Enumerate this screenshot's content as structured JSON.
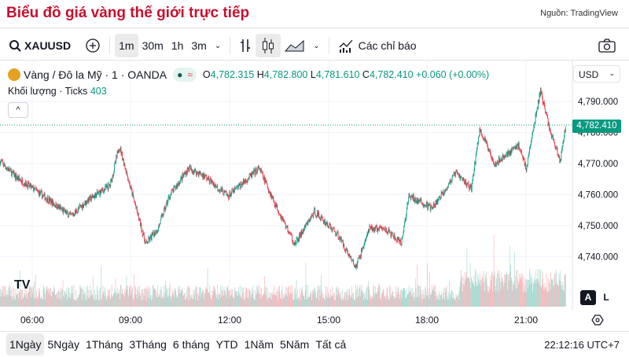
{
  "header": {
    "title": "Biểu đồ giá vàng thế giới trực tiếp",
    "source": "Nguồn: TradingView"
  },
  "toolbar": {
    "symbol": "XAUUSD",
    "intervals": [
      "1m",
      "30m",
      "1h",
      "3m"
    ],
    "active_interval": "1m",
    "indicators": "Các chỉ báo",
    "icons": [
      "search-icon",
      "plus-circle-icon",
      "chevron-down-icon",
      "bar-chart-icon",
      "candlestick-icon",
      "area-chart-icon",
      "chevron-down-icon",
      "indicators-icon",
      "camera-icon"
    ]
  },
  "legend": {
    "name": "Vàng / Đô la Mỹ · 1 · OANDA",
    "o_label": "O",
    "o": "4,782.315",
    "h_label": "H",
    "h": "4,782.800",
    "l_label": "L",
    "l": "4,781.610",
    "c_label": "C",
    "c": "4,782.410",
    "change": "+0.060 (+0.00%)",
    "volume_label": "Khối lượng · Ticks",
    "volume": "403",
    "collapse": "^"
  },
  "currency": "USD",
  "price_axis": {
    "ticks": [
      "4,790.000",
      "4,780.000",
      "4,770.000",
      "4,760.000",
      "4,750.000",
      "4,740.000"
    ],
    "last_price": "4,782.410"
  },
  "time_axis": {
    "ticks": [
      "06:00",
      "09:00",
      "12:00",
      "15:00",
      "18:00",
      "21:00"
    ]
  },
  "scale_buttons": {
    "auto": "A",
    "log": "L"
  },
  "logo": "TV",
  "ranges": {
    "items": [
      "1Ngày",
      "5Ngày",
      "1Tháng",
      "3Tháng",
      "6 tháng",
      "YTD",
      "1Năm",
      "5Năm",
      "Tất cả"
    ],
    "active": "1Ngày"
  },
  "clock": "22:12:16 UTC+7",
  "colors": {
    "up": "#089981",
    "down": "#f23645",
    "title": "#c8102e"
  },
  "chart_data": {
    "type": "candlestick",
    "interval": "1m",
    "ylim": [
      4735,
      4795
    ],
    "price_ticks": [
      4790,
      4780,
      4770,
      4760,
      4750,
      4740
    ],
    "x_ticks": [
      "06:00",
      "09:00",
      "12:00",
      "15:00",
      "18:00",
      "21:00"
    ],
    "approx_close_path": [
      [
        "05:01",
        4770.8
      ],
      [
        "05:30",
        4765.7
      ],
      [
        "06:13",
        4760.5
      ],
      [
        "07:10",
        4753
      ],
      [
        "07:40",
        4758
      ],
      [
        "08:22",
        4763
      ],
      [
        "08:39",
        4775.7
      ],
      [
        "08:58",
        4763
      ],
      [
        "09:27",
        4744
      ],
      [
        "09:49",
        4749
      ],
      [
        "10:10",
        4759.5
      ],
      [
        "10:45",
        4768.5
      ],
      [
        "11:14",
        4766
      ],
      [
        "11:57",
        4759.5
      ],
      [
        "12:54",
        4768.5
      ],
      [
        "13:23",
        4757
      ],
      [
        "13:59",
        4744
      ],
      [
        "14:35",
        4754.5
      ],
      [
        "15:18",
        4747
      ],
      [
        "15:50",
        4736.5
      ],
      [
        "16:15",
        4749
      ],
      [
        "16:44",
        4749
      ],
      [
        "17:13",
        4744
      ],
      [
        "17:27",
        4759.5
      ],
      [
        "18:10",
        4755.5
      ],
      [
        "18:53",
        4767
      ],
      [
        "19:21",
        4762
      ],
      [
        "19:36",
        4781
      ],
      [
        "20:04",
        4770
      ],
      [
        "20:47",
        4776
      ],
      [
        "21:01",
        4768.5
      ],
      [
        "21:27",
        4793.5
      ],
      [
        "21:44",
        4781
      ],
      [
        "22:03",
        4770.8
      ],
      [
        "22:13",
        4782.41
      ]
    ]
  }
}
